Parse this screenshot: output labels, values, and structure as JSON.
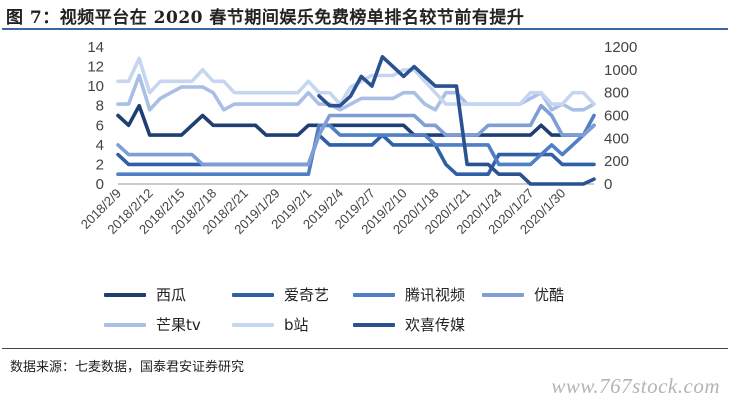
{
  "header": {
    "title": "图 7：视频平台在 2020 春节期间娱乐免费榜单排名较节前有提升"
  },
  "chart_data": {
    "type": "line",
    "left_axis": {
      "ticks": [
        0,
        2,
        4,
        6,
        8,
        10,
        12,
        14
      ],
      "range": [
        0,
        14
      ]
    },
    "right_axis": {
      "ticks": [
        0,
        200,
        400,
        600,
        800,
        1000,
        1200
      ],
      "range": [
        0,
        1200
      ]
    },
    "x_tick_labels": [
      "2018/2/9",
      "2018/2/12",
      "2018/2/15",
      "2018/2/18",
      "2018/2/21",
      "2019/1/29",
      "2019/2/1",
      "2019/2/4",
      "2019/2/7",
      "2019/2/10",
      "2020/1/18",
      "2020/1/21",
      "2020/1/24",
      "2020/1/27",
      "2020/1/30"
    ],
    "series": [
      {
        "name": "西瓜",
        "axis": "left",
        "color": "#1f3f73",
        "values": [
          7,
          6,
          8,
          5,
          5,
          5,
          5,
          6,
          7,
          6,
          6,
          6,
          6,
          6,
          5,
          5,
          5,
          5,
          6,
          6,
          6,
          6,
          6,
          6,
          6,
          6,
          6,
          6,
          5,
          5,
          5,
          5,
          5,
          5,
          5,
          5,
          5,
          5,
          5,
          5,
          6,
          5,
          5,
          5,
          5,
          6
        ]
      },
      {
        "name": "爱奇艺",
        "axis": "left",
        "color": "#2f5fa6",
        "values": [
          3,
          2,
          2,
          2,
          2,
          2,
          2,
          2,
          2,
          2,
          2,
          2,
          2,
          2,
          2,
          2,
          2,
          2,
          2,
          5,
          4,
          4,
          4,
          4,
          4,
          5,
          4,
          4,
          4,
          4,
          4,
          2,
          1,
          1,
          1,
          1,
          3,
          3,
          3,
          3,
          3,
          3,
          2,
          2,
          2,
          2
        ]
      },
      {
        "name": "腾讯视频",
        "axis": "left",
        "color": "#4f7fc4",
        "values": [
          1,
          1,
          1,
          1,
          1,
          1,
          1,
          1,
          1,
          1,
          1,
          1,
          1,
          1,
          1,
          1,
          1,
          1,
          1,
          6,
          6,
          5,
          5,
          5,
          5,
          5,
          5,
          5,
          5,
          5,
          4,
          4,
          4,
          4,
          4,
          4,
          2,
          2,
          2,
          2,
          3,
          4,
          3,
          4,
          5,
          7
        ]
      },
      {
        "name": "优酷",
        "axis": "left",
        "color": "#7f9ed6",
        "values": [
          4,
          3,
          3,
          3,
          3,
          3,
          3,
          3,
          2,
          2,
          2,
          2,
          2,
          2,
          2,
          2,
          2,
          2,
          2,
          5,
          7,
          7,
          7,
          7,
          7,
          7,
          7,
          7,
          7,
          6,
          6,
          5,
          5,
          5,
          5,
          6,
          6,
          6,
          6,
          6,
          8,
          7,
          5,
          5,
          5,
          6
        ]
      },
      {
        "name": "芒果tv",
        "axis": "right",
        "color": "#a9bfe6",
        "values": [
          700,
          700,
          950,
          650,
          750,
          800,
          850,
          850,
          850,
          800,
          650,
          700,
          700,
          700,
          700,
          700,
          700,
          700,
          800,
          700,
          700,
          650,
          700,
          750,
          750,
          750,
          750,
          800,
          800,
          700,
          650,
          800,
          800,
          700,
          700,
          700,
          700,
          700,
          700,
          750,
          800,
          650,
          700,
          650,
          650,
          700
        ]
      },
      {
        "name": "b站",
        "axis": "right",
        "color": "#c7d6f0",
        "values": [
          900,
          900,
          1100,
          800,
          900,
          900,
          900,
          900,
          1000,
          900,
          900,
          800,
          800,
          800,
          800,
          800,
          800,
          800,
          900,
          800,
          800,
          700,
          850,
          900,
          950,
          950,
          950,
          1000,
          1000,
          900,
          800,
          700,
          700,
          700,
          700,
          700,
          700,
          700,
          700,
          800,
          800,
          700,
          700,
          800,
          800,
          700
        ]
      },
      {
        "name": "欢喜传媒",
        "axis": "left",
        "color": "#2a5290",
        "values": [
          null,
          null,
          null,
          null,
          null,
          null,
          null,
          null,
          null,
          null,
          null,
          null,
          null,
          null,
          null,
          null,
          null,
          null,
          null,
          9,
          8,
          8,
          9,
          11,
          10,
          13,
          12,
          11,
          12,
          11,
          10,
          10,
          10,
          2,
          2,
          2,
          1,
          1,
          1,
          0,
          0,
          0,
          0,
          0,
          0,
          0.5
        ]
      }
    ]
  },
  "legend": {
    "items": [
      "西瓜",
      "爱奇艺",
      "腾讯视频",
      "优酷",
      "芒果tv",
      "b站",
      "欢喜传媒"
    ]
  },
  "footer": {
    "source": "数据来源：七麦数据，国泰君安证券研究",
    "watermark": "www.767stock.com"
  }
}
